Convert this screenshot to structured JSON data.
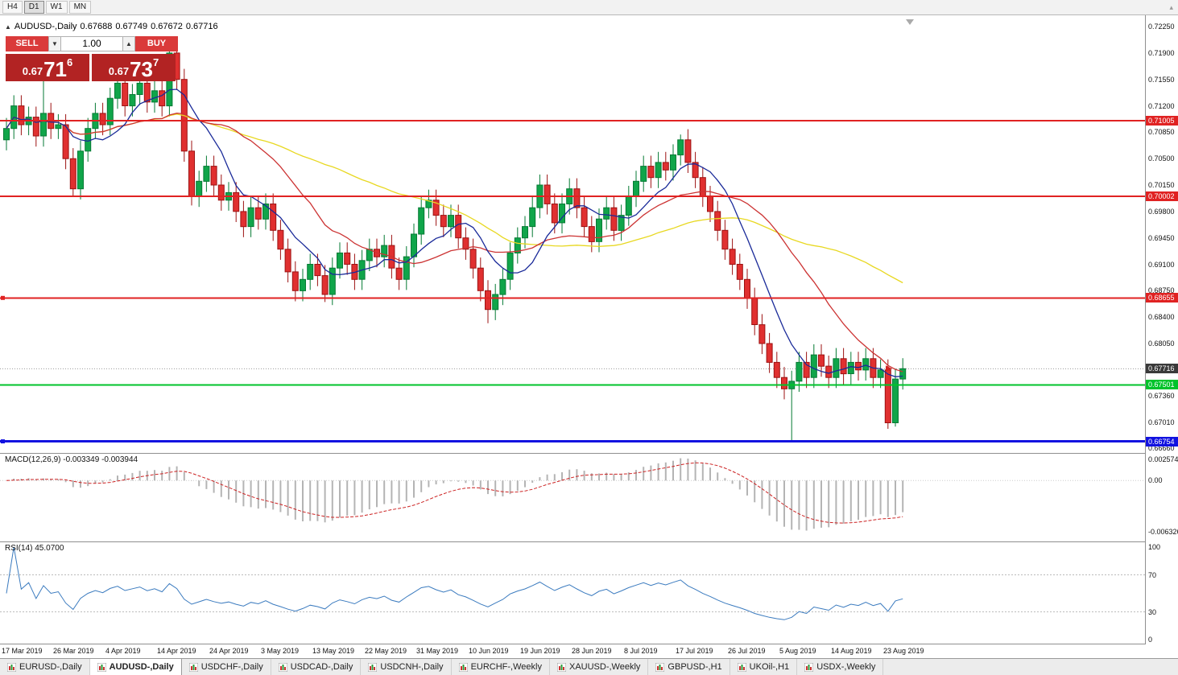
{
  "toolbar": {
    "timeframes": [
      "H4",
      "D1",
      "W1",
      "MN"
    ],
    "active": "D1"
  },
  "symbol_header": {
    "symbol": "AUDUSD-,Daily",
    "open": "0.67688",
    "high": "0.67749",
    "low": "0.67672",
    "close": "0.67716"
  },
  "one_click": {
    "sell_label": "SELL",
    "buy_label": "BUY",
    "volume": "1.00",
    "sell_price_prefix": "0.67",
    "sell_price_big": "71",
    "sell_price_sup": "6",
    "buy_price_prefix": "0.67",
    "buy_price_big": "73",
    "buy_price_sup": "7"
  },
  "price_axis": {
    "labels": [
      "0.72250",
      "0.71900",
      "0.71550",
      "0.71200",
      "0.70850",
      "0.70500",
      "0.70150",
      "0.69800",
      "0.69450",
      "0.69100",
      "0.68750",
      "0.68400",
      "0.68050",
      "0.67360",
      "0.67010",
      "0.66660"
    ]
  },
  "levels": [
    {
      "label": "0.71005",
      "value": 0.71005,
      "color": "#e02222",
      "text_color": "#ffffff",
      "width": 2,
      "handle": false
    },
    {
      "label": "0.70002",
      "value": 0.70002,
      "color": "#e02222",
      "text_color": "#ffffff",
      "width": 2,
      "handle": false
    },
    {
      "label": "0.68655",
      "value": 0.68655,
      "color": "#e02222",
      "text_color": "#ffffff",
      "width": 2,
      "handle": true
    },
    {
      "label": "0.67501",
      "value": 0.67501,
      "color": "#00c32b",
      "text_color": "#ffffff",
      "width": 2,
      "handle": false
    },
    {
      "label": "0.66754",
      "value": 0.66754,
      "color": "#1212e0",
      "text_color": "#ffffff",
      "width": 3,
      "handle": true
    }
  ],
  "current_price": {
    "label": "0.67716",
    "value": 0.67716,
    "box_color": "#3a3a3a",
    "text_color": "#ffffff"
  },
  "chart_data": {
    "type": "candlestick",
    "symbol": "AUDUSD",
    "timeframe": "Daily",
    "price_range": {
      "top": 0.724,
      "bottom": 0.666
    },
    "open_first": 0.7075,
    "closes": [
      0.709,
      0.712,
      0.7095,
      0.7105,
      0.708,
      0.711,
      0.709,
      0.7095,
      0.705,
      0.701,
      0.706,
      0.709,
      0.711,
      0.7095,
      0.713,
      0.715,
      0.712,
      0.7135,
      0.715,
      0.7125,
      0.714,
      0.712,
      0.719,
      0.7155,
      0.706,
      0.7,
      0.702,
      0.704,
      0.7015,
      0.6995,
      0.7005,
      0.698,
      0.696,
      0.6985,
      0.697,
      0.699,
      0.6955,
      0.693,
      0.69,
      0.6875,
      0.689,
      0.691,
      0.6895,
      0.687,
      0.6905,
      0.6925,
      0.691,
      0.689,
      0.6915,
      0.693,
      0.692,
      0.6935,
      0.6905,
      0.689,
      0.692,
      0.695,
      0.6985,
      0.6995,
      0.6975,
      0.696,
      0.6975,
      0.6945,
      0.693,
      0.6905,
      0.6875,
      0.685,
      0.687,
      0.689,
      0.6925,
      0.6945,
      0.696,
      0.6985,
      0.7015,
      0.699,
      0.6965,
      0.699,
      0.701,
      0.6985,
      0.696,
      0.694,
      0.697,
      0.6985,
      0.6955,
      0.6975,
      0.7,
      0.702,
      0.704,
      0.7025,
      0.7045,
      0.7035,
      0.7055,
      0.7075,
      0.7045,
      0.7025,
      0.7,
      0.698,
      0.6955,
      0.693,
      0.691,
      0.689,
      0.6865,
      0.683,
      0.6805,
      0.678,
      0.676,
      0.6745,
      0.6755,
      0.678,
      0.676,
      0.679,
      0.6775,
      0.676,
      0.6785,
      0.6765,
      0.678,
      0.677,
      0.6785,
      0.676,
      0.677,
      0.67,
      0.6758,
      0.67716
    ],
    "wick_overrides": {
      "5": {
        "h": 0.7158
      },
      "9": {
        "l": 0.7
      },
      "22": {
        "h": 0.7205
      },
      "25": {
        "l": 0.6988
      },
      "43": {
        "l": 0.686
      },
      "65": {
        "l": 0.6832
      },
      "91": {
        "h": 0.7082
      },
      "106": {
        "l": 0.6677
      },
      "119": {
        "l": 0.6692
      },
      "120": {
        "l": 0.6695
      }
    },
    "colors": {
      "bull": "#10a54a",
      "bull_border": "#067a34",
      "bear": "#e03030",
      "bear_border": "#9c1212",
      "ma_fast": "#1a2a99",
      "ma_mid": "#cc3333",
      "ma_slow": "#e8d821"
    },
    "ma_periods": {
      "fast": 8,
      "mid": 20,
      "slow": 45
    }
  },
  "macd": {
    "title": "MACD(12,26,9)",
    "value_main": "-0.003349",
    "value_signal": "-0.003944",
    "axis": [
      {
        "label": "0.002574",
        "value": 0.002574
      },
      {
        "label": "0.00",
        "value": 0
      },
      {
        "label": "-0.006326",
        "value": -0.006326
      }
    ],
    "range": {
      "top": 0.0033,
      "bottom": -0.0075
    },
    "histogram_color": "#b4b4b4",
    "signal_color": "#cc2222"
  },
  "rsi": {
    "title": "RSI(14)",
    "value": "45.0700",
    "period": 14,
    "axis": [
      {
        "label": "100",
        "value": 100
      },
      {
        "label": "70",
        "value": 70
      },
      {
        "label": "30",
        "value": 30
      },
      {
        "label": "0",
        "value": 0
      }
    ],
    "levels": [
      70,
      30
    ],
    "line_color": "#3b7bbf"
  },
  "date_axis": {
    "labels": [
      "17 Mar 2019",
      "26 Mar 2019",
      "4 Apr 2019",
      "14 Apr 2019",
      "24 Apr 2019",
      "3 May 2019",
      "13 May 2019",
      "22 May 2019",
      "31 May 2019",
      "10 Jun 2019",
      "19 Jun 2019",
      "28 Jun 2019",
      "8 Jul 2019",
      "17 Jul 2019",
      "26 Jul 2019",
      "5 Aug 2019",
      "14 Aug 2019",
      "23 Aug 2019"
    ],
    "bars_per_label": 7
  },
  "tabs": [
    {
      "label": "EURUSD-,Daily",
      "active": false
    },
    {
      "label": "AUDUSD-,Daily",
      "active": true
    },
    {
      "label": "USDCHF-,Daily",
      "active": false
    },
    {
      "label": "USDCAD-,Daily",
      "active": false
    },
    {
      "label": "USDCNH-,Daily",
      "active": false
    },
    {
      "label": "EURCHF-,Weekly",
      "active": false
    },
    {
      "label": "XAUUSD-,Weekly",
      "active": false
    },
    {
      "label": "GBPUSD-,H1",
      "active": false
    },
    {
      "label": "UKOil-,H1",
      "active": false
    },
    {
      "label": "USDX-,Weekly",
      "active": false
    }
  ]
}
